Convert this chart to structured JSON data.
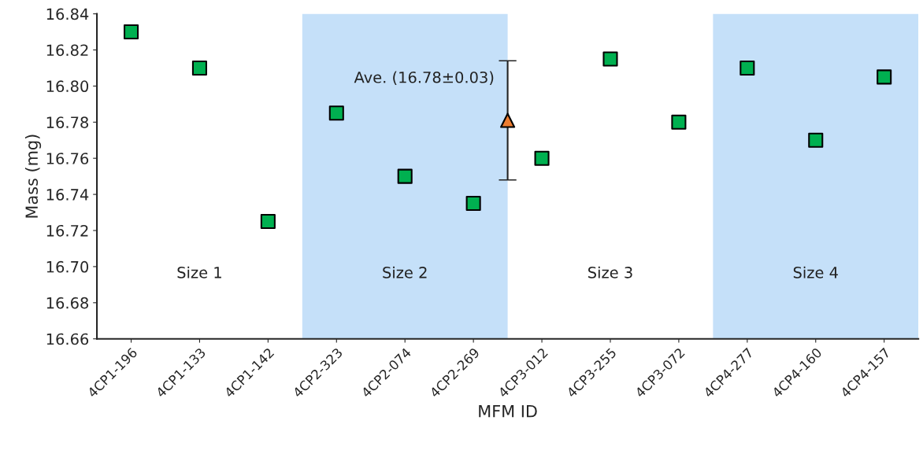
{
  "chart_data": {
    "type": "scatter",
    "xlabel": "MFM ID",
    "ylabel": "Mass (mg)",
    "categories": [
      "4CP1-196",
      null,
      "4CP1-133",
      null,
      "4CP1-142",
      null,
      "4CP2-323",
      null,
      "4CP2-074",
      null,
      "4CP2-269",
      null,
      "4CP3-012",
      null,
      "4CP3-255",
      null,
      "4CP3-072",
      null,
      "4CP4-277",
      null,
      "4CP4-160",
      null,
      "4CP4-157"
    ],
    "series": [
      {
        "color": "#00b050",
        "marker": "square",
        "values": [
          16.83,
          null,
          16.81,
          null,
          16.725,
          null,
          16.785,
          null,
          16.75,
          null,
          16.735,
          null,
          16.76,
          null,
          16.815,
          null,
          16.78,
          null,
          16.81,
          null,
          16.77,
          null,
          16.805
        ]
      },
      {
        "color": "#ed7d31",
        "marker": "triangle",
        "values": [
          null,
          null,
          null,
          null,
          null,
          null,
          null,
          null,
          null,
          null,
          null,
          16.781,
          null,
          null,
          null,
          null,
          null,
          null,
          null,
          null,
          null,
          null,
          null
        ],
        "errors": [
          null,
          null,
          null,
          null,
          null,
          null,
          null,
          null,
          null,
          null,
          null,
          0.033,
          null,
          null,
          null,
          null,
          null,
          null,
          null,
          null,
          null,
          null,
          null
        ]
      }
    ],
    "annotations": [
      "Ave. (16.78±0.03)",
      "Size 1",
      "Size 2",
      "Size 3",
      "Size 4"
    ],
    "ylim": [
      16.66,
      16.84
    ],
    "yticks": [
      16.66,
      16.68,
      {
        "value": 16.7,
        "label": "16.70"
      },
      16.72,
      16.74,
      16.76,
      16.78,
      {
        "value": 16.8,
        "label": "16.80"
      },
      16.82,
      16.84
    ],
    "grid": false
  }
}
